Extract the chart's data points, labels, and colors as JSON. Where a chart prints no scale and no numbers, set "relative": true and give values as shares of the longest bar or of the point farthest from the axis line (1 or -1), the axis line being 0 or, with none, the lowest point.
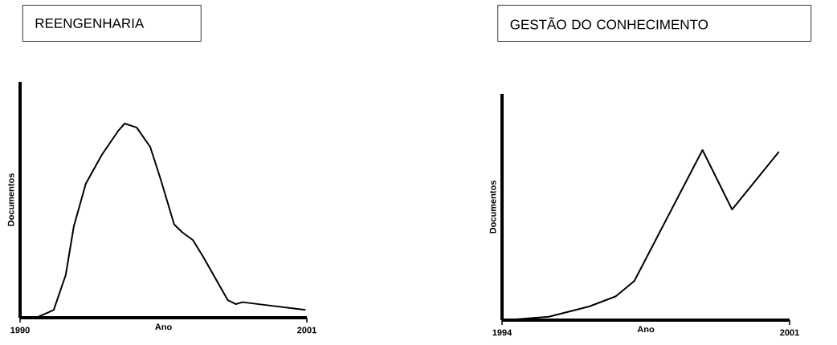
{
  "chart_data": [
    {
      "type": "line",
      "title": "REENGENHARIA",
      "xlabel": "Ano",
      "ylabel": "Documentos",
      "relative": true,
      "xlim": [
        1990,
        2001
      ],
      "xticks": [
        1990,
        2001
      ],
      "color": "#000000",
      "x": [
        1990.62,
        1991.29,
        1991.75,
        1992.06,
        1992.52,
        1993.14,
        1993.75,
        1994.01,
        1994.47,
        1994.99,
        1995.4,
        1995.91,
        1996.22,
        1996.63,
        1997.04,
        1997.97,
        1998.28,
        1998.53,
        2000.95
      ],
      "values": [
        0.0,
        0.04,
        0.22,
        0.47,
        0.69,
        0.84,
        0.96,
        1.0,
        0.98,
        0.88,
        0.71,
        0.48,
        0.44,
        0.4,
        0.31,
        0.09,
        0.07,
        0.08,
        0.04
      ]
    },
    {
      "type": "line",
      "title": "GESTÃO DO CONHECIMENTO",
      "xlabel": "Ano",
      "ylabel": "Documentos",
      "relative": true,
      "xlim": [
        1994,
        2001
      ],
      "xticks": [
        1994,
        2001
      ],
      "color": "#000000",
      "x": [
        1994.1,
        1995.14,
        1996.12,
        1996.77,
        1997.22,
        1998.88,
        1999.6,
        2000.74
      ],
      "values": [
        0.0,
        0.02,
        0.08,
        0.14,
        0.23,
        1.0,
        0.65,
        0.99
      ]
    }
  ]
}
